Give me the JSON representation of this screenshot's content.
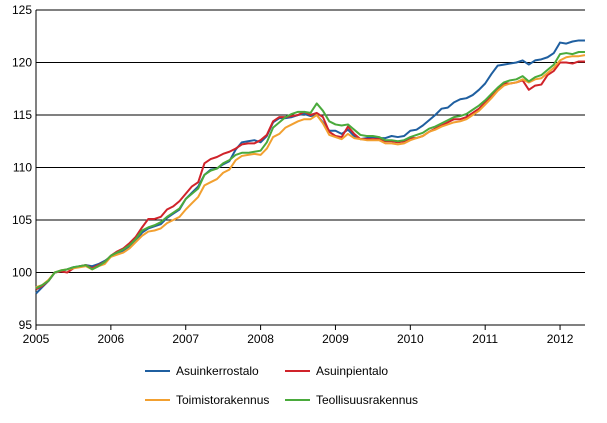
{
  "chart_data": {
    "type": "line",
    "xlabel": "",
    "ylabel": "",
    "xlim": [
      2005.0,
      2012.3333
    ],
    "ylim": [
      95,
      125
    ],
    "y_ticks": [
      95,
      100,
      105,
      110,
      115,
      120,
      125
    ],
    "x_ticks": [
      2005,
      2006,
      2007,
      2008,
      2009,
      2010,
      2011,
      2012
    ],
    "x_tick_labels": [
      "2005",
      "2006",
      "2007",
      "2008",
      "2009",
      "2010",
      "2011",
      "2012"
    ],
    "grid": "horizontal",
    "legend_position": "bottom",
    "x": [
      2005.0,
      2005.083,
      2005.167,
      2005.25,
      2005.333,
      2005.417,
      2005.5,
      2005.583,
      2005.667,
      2005.75,
      2005.833,
      2005.917,
      2006.0,
      2006.083,
      2006.167,
      2006.25,
      2006.333,
      2006.417,
      2006.5,
      2006.583,
      2006.667,
      2006.75,
      2006.833,
      2006.917,
      2007.0,
      2007.083,
      2007.167,
      2007.25,
      2007.333,
      2007.417,
      2007.5,
      2007.583,
      2007.667,
      2007.75,
      2007.833,
      2007.917,
      2008.0,
      2008.083,
      2008.167,
      2008.25,
      2008.333,
      2008.417,
      2008.5,
      2008.583,
      2008.667,
      2008.75,
      2008.833,
      2008.917,
      2009.0,
      2009.083,
      2009.167,
      2009.25,
      2009.333,
      2009.417,
      2009.5,
      2009.583,
      2009.667,
      2009.75,
      2009.833,
      2009.917,
      2010.0,
      2010.083,
      2010.167,
      2010.25,
      2010.333,
      2010.417,
      2010.5,
      2010.583,
      2010.667,
      2010.75,
      2010.833,
      2010.917,
      2011.0,
      2011.083,
      2011.167,
      2011.25,
      2011.333,
      2011.417,
      2011.5,
      2011.583,
      2011.667,
      2011.75,
      2011.833,
      2011.917,
      2012.0,
      2012.083,
      2012.167,
      2012.25,
      2012.333
    ],
    "series": [
      {
        "name": "Asuinkerrostalo",
        "color": "#1f5fa0",
        "values": [
          98.0,
          98.6,
          99.2,
          100.0,
          100.1,
          100.3,
          100.5,
          100.6,
          100.7,
          100.6,
          100.8,
          101.1,
          101.5,
          101.8,
          102.1,
          102.5,
          103.0,
          103.8,
          104.2,
          104.4,
          104.6,
          105.2,
          105.6,
          106.0,
          107.0,
          107.6,
          108.2,
          109.3,
          109.8,
          109.9,
          110.3,
          110.6,
          111.7,
          112.4,
          112.5,
          112.6,
          112.4,
          113.0,
          114.3,
          114.7,
          114.7,
          114.8,
          115.0,
          115.1,
          114.9,
          115.0,
          114.3,
          113.5,
          113.5,
          113.2,
          113.6,
          113.0,
          112.7,
          112.8,
          112.9,
          112.8,
          112.8,
          113.0,
          112.9,
          113.0,
          113.5,
          113.6,
          114.0,
          114.5,
          115.0,
          115.6,
          115.7,
          116.2,
          116.5,
          116.6,
          116.9,
          117.4,
          118.0,
          118.9,
          119.7,
          119.8,
          119.9,
          120.0,
          120.2,
          119.8,
          120.2,
          120.3,
          120.5,
          120.9,
          121.9,
          121.8,
          122.0,
          122.1,
          122.1
        ]
      },
      {
        "name": "Asuinpientalo",
        "color": "#d0232a",
        "values": [
          98.4,
          98.7,
          99.2,
          100.0,
          100.1,
          100.0,
          100.4,
          100.6,
          100.7,
          100.4,
          100.7,
          101.0,
          101.6,
          102.0,
          102.3,
          102.8,
          103.4,
          104.3,
          105.1,
          105.1,
          105.3,
          106.0,
          106.3,
          106.8,
          107.5,
          108.2,
          108.6,
          110.4,
          110.8,
          111.0,
          111.3,
          111.5,
          111.8,
          112.2,
          112.3,
          112.3,
          112.6,
          113.1,
          114.4,
          114.8,
          114.8,
          114.9,
          115.0,
          115.3,
          115.0,
          115.2,
          114.8,
          113.4,
          113.0,
          112.9,
          113.9,
          113.2,
          112.7,
          112.7,
          112.7,
          112.7,
          112.5,
          112.5,
          112.4,
          112.5,
          112.8,
          112.8,
          113.0,
          113.4,
          113.7,
          114.0,
          114.3,
          114.6,
          114.6,
          114.8,
          115.2,
          115.6,
          116.2,
          116.8,
          117.5,
          118.0,
          118.0,
          118.1,
          118.3,
          117.4,
          117.8,
          117.9,
          118.8,
          119.2,
          120.0,
          120.0,
          119.9,
          120.1,
          120.1
        ]
      },
      {
        "name": "Toimistorakennus",
        "color": "#f2a030",
        "values": [
          98.6,
          98.8,
          99.3,
          100.0,
          100.2,
          100.3,
          100.4,
          100.5,
          100.6,
          100.3,
          100.6,
          100.8,
          101.5,
          101.7,
          101.9,
          102.3,
          102.9,
          103.5,
          103.9,
          104.0,
          104.2,
          104.7,
          105.0,
          105.3,
          106.0,
          106.6,
          107.2,
          108.3,
          108.6,
          108.9,
          109.5,
          109.8,
          110.7,
          111.1,
          111.2,
          111.3,
          111.2,
          111.8,
          112.9,
          113.2,
          113.8,
          114.1,
          114.4,
          114.6,
          114.6,
          115.0,
          114.2,
          113.1,
          112.9,
          112.7,
          113.2,
          112.8,
          112.7,
          112.6,
          112.6,
          112.6,
          112.3,
          112.3,
          112.2,
          112.3,
          112.6,
          112.8,
          113.0,
          113.4,
          113.6,
          113.9,
          114.1,
          114.3,
          114.4,
          114.6,
          115.0,
          115.4,
          116.0,
          116.6,
          117.3,
          117.8,
          118.0,
          118.1,
          118.4,
          118.1,
          118.4,
          118.5,
          119.0,
          119.5,
          120.2,
          120.5,
          120.6,
          120.6,
          120.7
        ]
      },
      {
        "name": "Teollisuusrakennus",
        "color": "#4aaa3c",
        "values": [
          98.5,
          98.8,
          99.2,
          100.0,
          100.2,
          100.3,
          100.5,
          100.6,
          100.7,
          100.3,
          100.6,
          101.0,
          101.6,
          101.9,
          102.2,
          102.6,
          103.2,
          104.0,
          104.3,
          104.5,
          104.8,
          105.3,
          105.7,
          106.1,
          107.0,
          107.5,
          108.0,
          109.3,
          109.7,
          109.9,
          110.4,
          110.7,
          111.2,
          111.4,
          111.4,
          111.5,
          111.6,
          112.4,
          113.8,
          114.3,
          114.8,
          115.1,
          115.3,
          115.3,
          115.2,
          116.1,
          115.4,
          114.4,
          114.1,
          114.0,
          114.1,
          113.6,
          113.1,
          113.0,
          113.0,
          112.9,
          112.6,
          112.6,
          112.5,
          112.6,
          112.9,
          113.1,
          113.3,
          113.7,
          113.9,
          114.2,
          114.5,
          114.8,
          114.9,
          115.1,
          115.5,
          115.9,
          116.4,
          117.0,
          117.6,
          118.1,
          118.3,
          118.4,
          118.7,
          118.2,
          118.6,
          118.8,
          119.3,
          119.8,
          120.8,
          120.9,
          120.8,
          121.0,
          121.0
        ]
      }
    ]
  }
}
